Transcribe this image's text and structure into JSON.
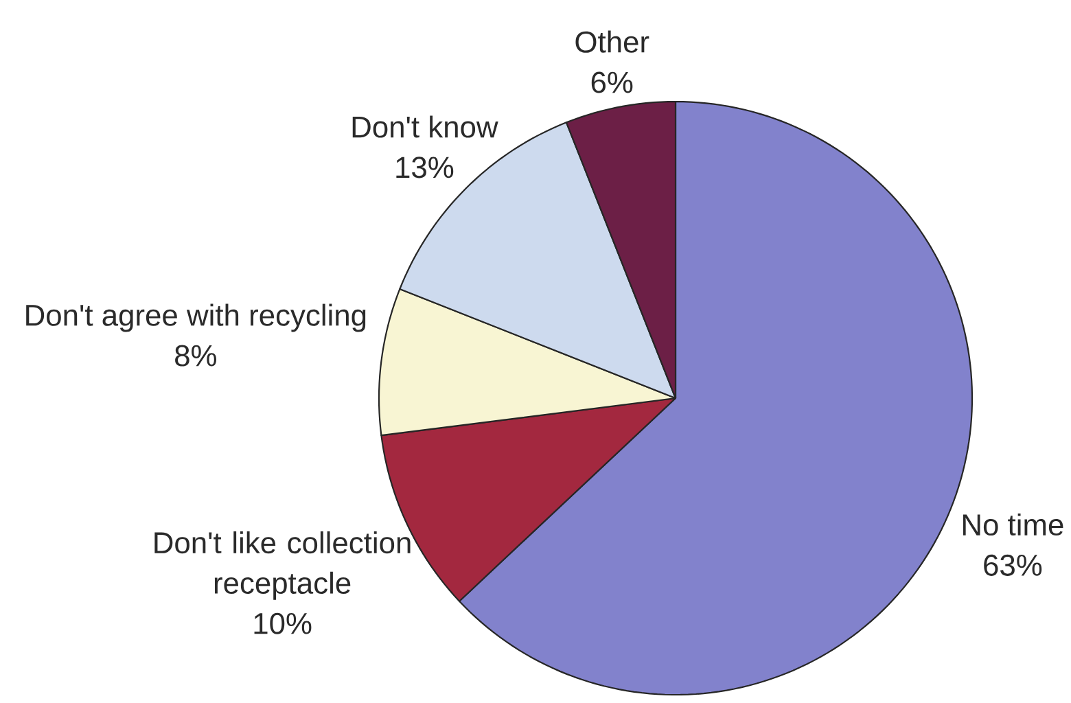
{
  "chart_data": {
    "type": "pie",
    "categories": [
      "No time",
      "Don't like collection receptacle",
      "Don't agree with recycling",
      "Don't know",
      "Other"
    ],
    "values": [
      63,
      10,
      8,
      13,
      6
    ],
    "value_labels": [
      "63%",
      "10%",
      "8%",
      "13%",
      "6%"
    ],
    "colors": [
      "#8282cc",
      "#a3283f",
      "#f8f5d3",
      "#cddaee",
      "#6c1f46"
    ]
  }
}
